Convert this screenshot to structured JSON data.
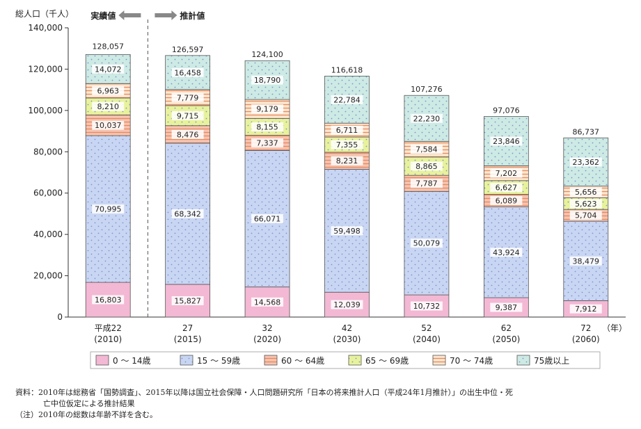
{
  "chart_data": {
    "type": "bar",
    "stacked": true,
    "ylabel": "総人口（千人）",
    "ylim": [
      0,
      140000
    ],
    "yticks": [
      "0",
      "20,000",
      "40,000",
      "60,000",
      "80,000",
      "100,000",
      "120,000",
      "140,000"
    ],
    "yticks_values": [
      0,
      20000,
      40000,
      60000,
      80000,
      100000,
      120000,
      140000
    ],
    "x_unit": "（年）",
    "categories": [
      {
        "era": "平成22",
        "year": "(2010)"
      },
      {
        "era": "27",
        "year": "(2015)"
      },
      {
        "era": "32",
        "year": "(2020)"
      },
      {
        "era": "42",
        "year": "(2030)"
      },
      {
        "era": "52",
        "year": "(2040)"
      },
      {
        "era": "62",
        "year": "(2050)"
      },
      {
        "era": "72",
        "year": "(2060)"
      }
    ],
    "series": [
      {
        "name": "0 ～ 14歳",
        "color": "#f3b8d4",
        "pattern": "solid",
        "values": [
          16803,
          15827,
          14568,
          12039,
          10732,
          9387,
          7912
        ],
        "labels": [
          "16,803",
          "15,827",
          "14,568",
          "12,039",
          "10,732",
          "9,387",
          "7,912"
        ]
      },
      {
        "name": "15 ～ 59歳",
        "color": "#c9d6f3",
        "pattern": "dots",
        "values": [
          70995,
          68342,
          66071,
          59498,
          50079,
          43924,
          38479
        ],
        "labels": [
          "70,995",
          "68,342",
          "66,071",
          "59,498",
          "50,079",
          "43,924",
          "38,479"
        ]
      },
      {
        "name": "60 ～ 64歳",
        "color": "#f6c3b0",
        "pattern": "stripes",
        "values": [
          10037,
          8476,
          7337,
          8231,
          7787,
          6089,
          5704
        ],
        "labels": [
          "10,037",
          "8,476",
          "7,337",
          "8,231",
          "7,787",
          "6,089",
          "5,704"
        ]
      },
      {
        "name": "65 ～ 69歳",
        "color": "#e8f29c",
        "pattern": "dots",
        "values": [
          8210,
          9715,
          8155,
          7355,
          8865,
          6627,
          5623
        ],
        "labels": [
          "8,210",
          "9,715",
          "8,155",
          "7,355",
          "8,865",
          "6,627",
          "5,623"
        ]
      },
      {
        "name": "70 ～ 74歳",
        "color": "#fde6cf",
        "pattern": "stripes",
        "values": [
          6963,
          7779,
          9179,
          6711,
          7584,
          7202,
          5656
        ],
        "labels": [
          "6,963",
          "7,779",
          "9,179",
          "6,711",
          "7,584",
          "7,202",
          "5,656"
        ]
      },
      {
        "name": "75歳以上",
        "color": "#cdeae4",
        "pattern": "dots",
        "values": [
          14072,
          16458,
          18790,
          22784,
          22230,
          23846,
          23362
        ],
        "labels": [
          "14,072",
          "16,458",
          "18,790",
          "22,784",
          "22,230",
          "23,846",
          "23,362"
        ]
      }
    ],
    "totals": [
      128057,
      126597,
      124100,
      116618,
      107276,
      97076,
      86737
    ],
    "total_labels": [
      "128,057",
      "126,597",
      "124,100",
      "116,618",
      "107,276",
      "97,076",
      "86,737"
    ],
    "annotations": {
      "actual": "実績値",
      "projected": "推計値"
    },
    "legend_position": "bottom",
    "grid": false
  },
  "colors": {
    "stripe_line": "#e58a5f",
    "dot": "#7f93c6",
    "axis": "#333333",
    "arrow": "#888888"
  },
  "notes": {
    "source_line1": "資料：2010年は総務省「国勢調査」、2015年以降は国立社会保障・人口問題研究所「日本の将来推計人口（平成24年1月推計）」の出生中位・死",
    "source_line2": "亡中位仮定による推計結果",
    "note_line": "（注）2010年の総数は年齢不詳を含む。"
  }
}
